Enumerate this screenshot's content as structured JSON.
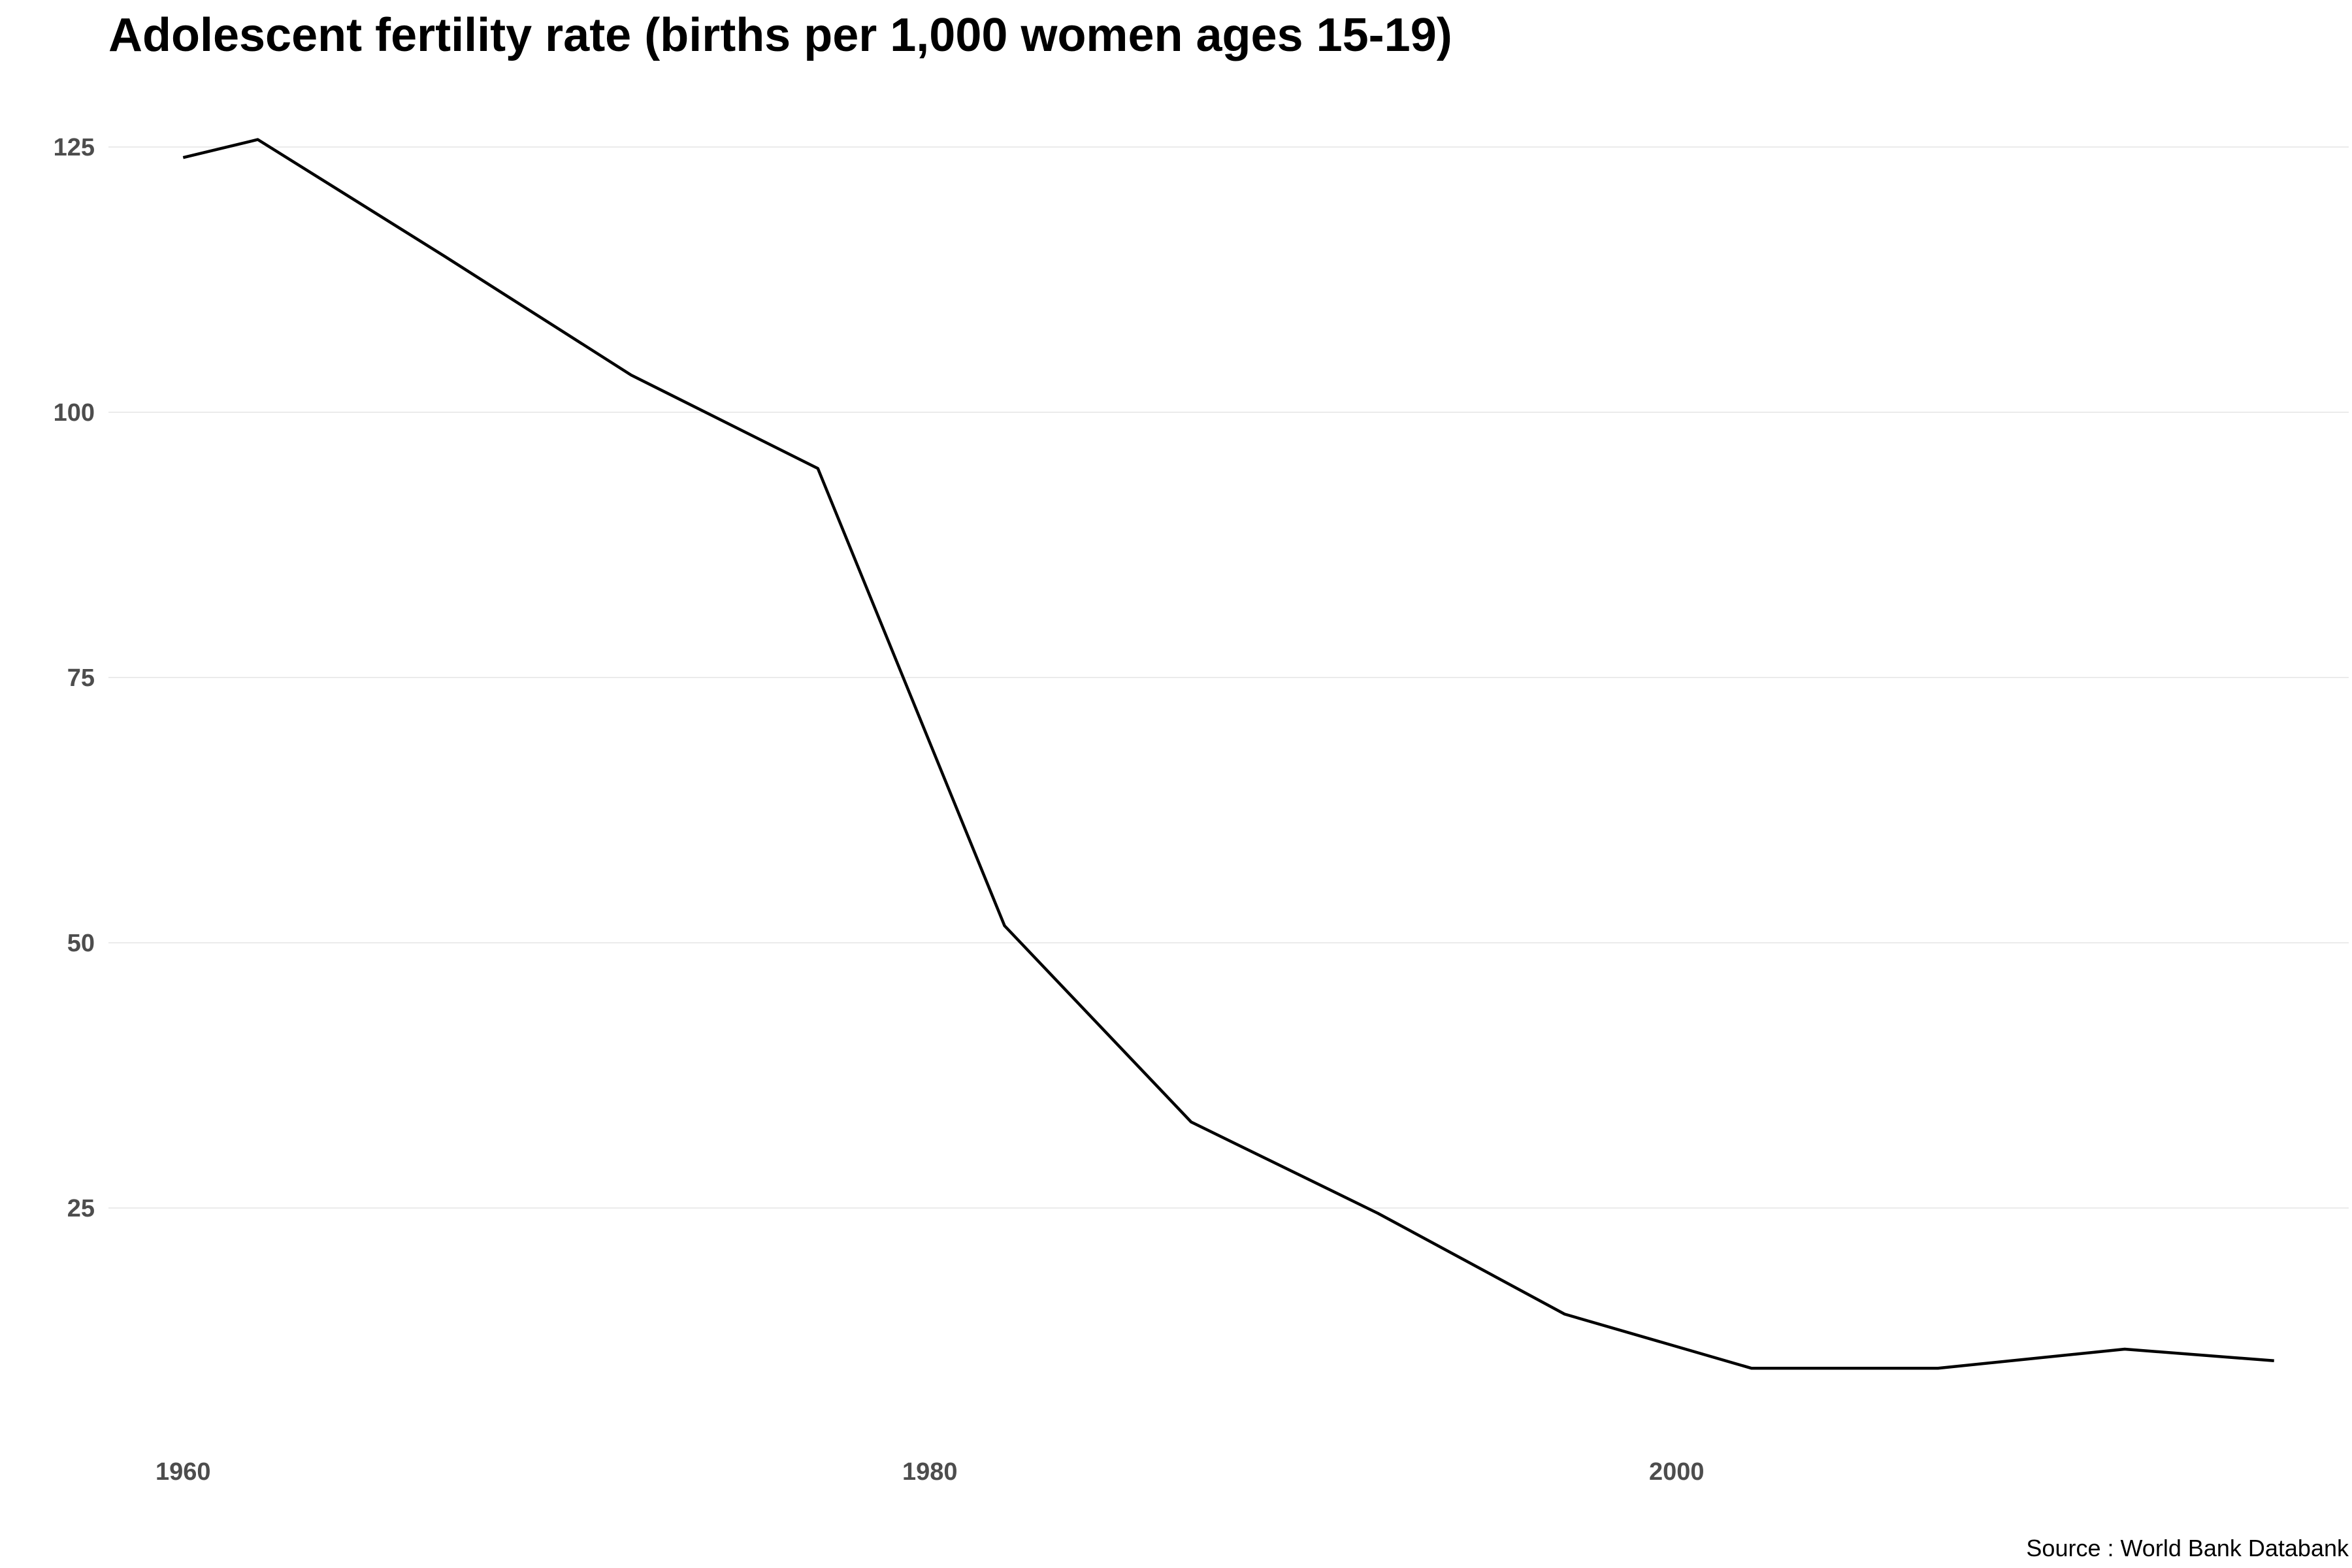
{
  "chart_data": {
    "type": "line",
    "title": "Adolescent fertility rate (births per 1,000 women ages 15-19)",
    "caption": "Source : World Bank Databank",
    "xlabel": "",
    "ylabel": "",
    "xlim": [
      1958,
      2018
    ],
    "ylim": [
      4,
      129
    ],
    "x_ticks": [
      1960,
      1980,
      2000
    ],
    "y_ticks": [
      25,
      50,
      75,
      100,
      125
    ],
    "grid": true,
    "legend": "none",
    "line_color": "#000000",
    "series": [
      {
        "x": [
          1960,
          1962,
          1967,
          1972,
          1977,
          1982,
          1987,
          1992,
          1997,
          2002,
          2007,
          2012,
          2016
        ],
        "values": [
          124.0,
          125.7,
          114.7,
          103.5,
          94.7,
          51.6,
          33.1,
          24.5,
          15.0,
          9.9,
          9.9,
          11.7,
          10.6
        ]
      }
    ]
  }
}
